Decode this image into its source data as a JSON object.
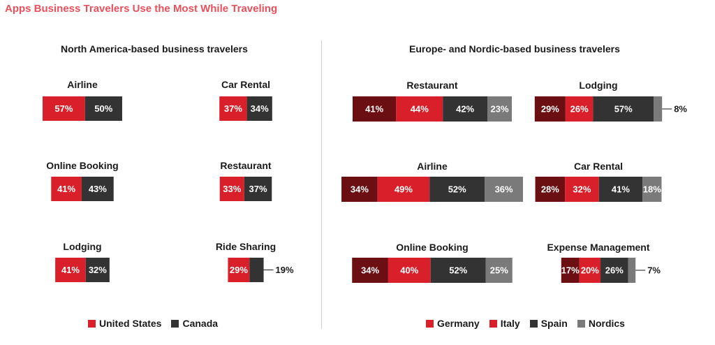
{
  "title": "Apps Business Travelers Use the Most While Traveling",
  "colors": {
    "united_states": "#d9202a",
    "canada": "#333333",
    "germany": "#6b0f12",
    "italy": "#d9202a",
    "spain": "#333333",
    "nordics": "#7a7a7a",
    "title": "#e8505b"
  },
  "chart_data": [
    {
      "type": "bar",
      "stacked": true,
      "orientation": "horizontal",
      "title": "North America-based business travelers",
      "legend": [
        "United States",
        "Canada"
      ],
      "legend_position": "bottom",
      "categories": [
        "Airline",
        "Car Rental",
        "Online Booking",
        "Restaurant",
        "Lodging",
        "Ride Sharing"
      ],
      "series": [
        {
          "name": "United States",
          "values": [
            57,
            37,
            41,
            33,
            41,
            29
          ]
        },
        {
          "name": "Canada",
          "values": [
            50,
            34,
            43,
            37,
            32,
            19
          ]
        }
      ],
      "unit": "%"
    },
    {
      "type": "bar",
      "stacked": true,
      "orientation": "horizontal",
      "title": "Europe- and Nordic-based business travelers",
      "legend": [
        "Germany",
        "Italy",
        "Spain",
        "Nordics"
      ],
      "legend_position": "bottom",
      "categories": [
        "Restaurant",
        "Lodging",
        "Airline",
        "Car Rental",
        "Online Booking",
        "Expense Management"
      ],
      "series": [
        {
          "name": "Germany",
          "values": [
            41,
            29,
            34,
            28,
            34,
            17
          ]
        },
        {
          "name": "Italy",
          "values": [
            44,
            26,
            49,
            32,
            40,
            20
          ]
        },
        {
          "name": "Spain",
          "values": [
            42,
            57,
            52,
            41,
            52,
            26
          ]
        },
        {
          "name": "Nordics",
          "values": [
            23,
            8,
            36,
            18,
            25,
            7
          ]
        }
      ],
      "unit": "%"
    }
  ]
}
